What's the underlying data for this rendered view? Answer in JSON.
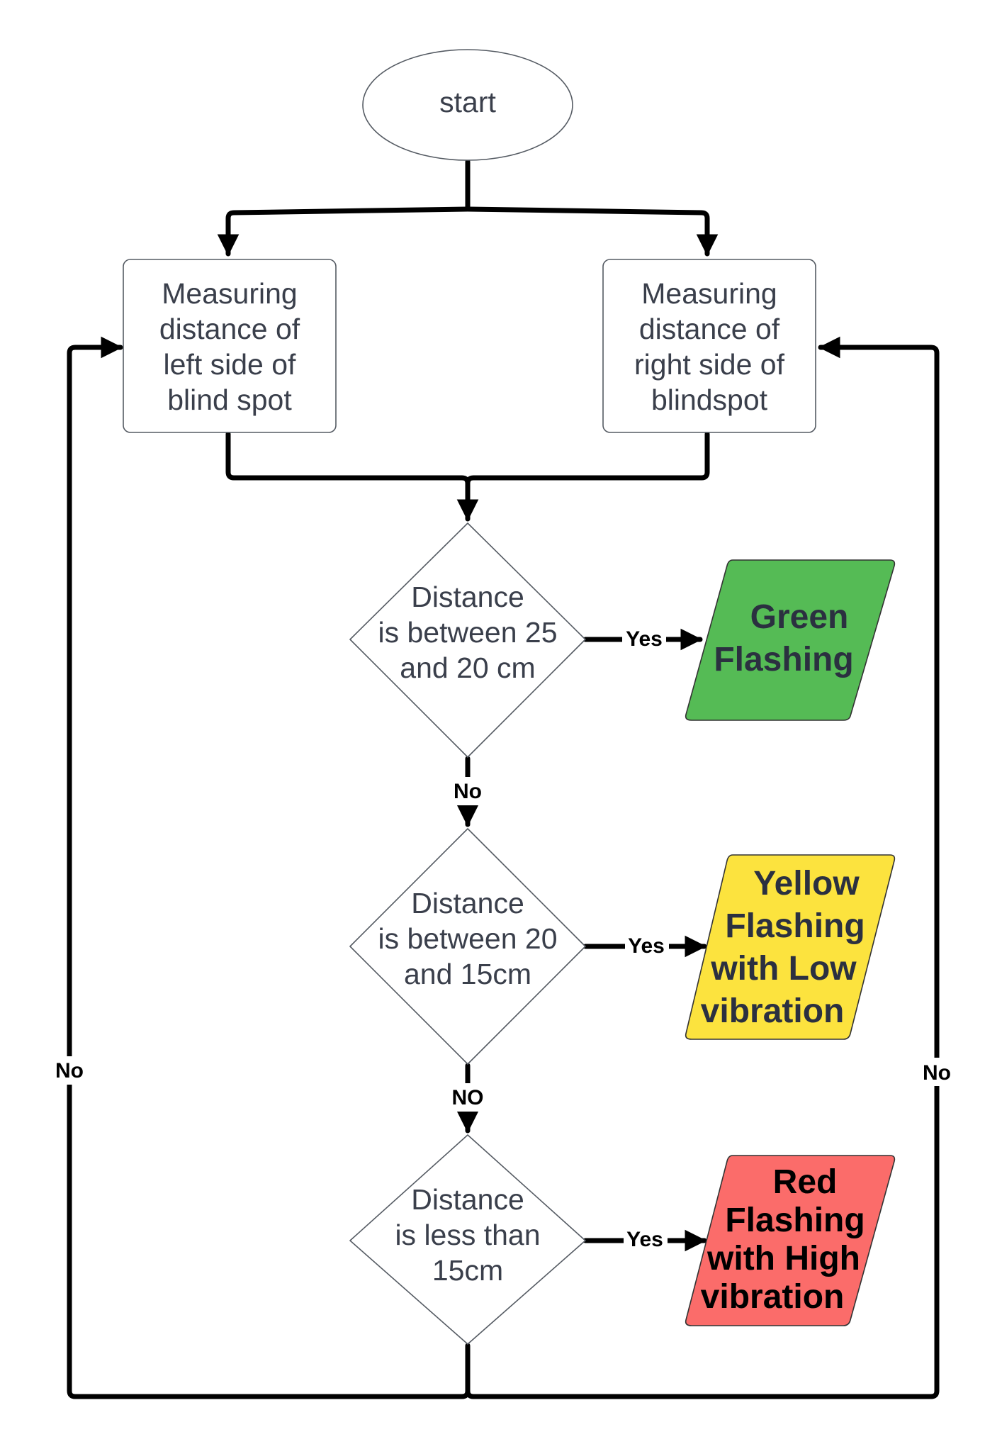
{
  "nodes": {
    "start": {
      "label": "start"
    },
    "measure_left": {
      "lines": [
        "Measuring",
        "distance of",
        "left side of",
        "blind spot"
      ]
    },
    "measure_right": {
      "lines": [
        "Measuring",
        "distance of",
        "right side of",
        "blindspot"
      ]
    },
    "decision_1": {
      "lines": [
        "Distance",
        "is between 25",
        "and 20 cm"
      ]
    },
    "decision_2": {
      "lines": [
        "Distance",
        "is between 20",
        "and 15cm"
      ]
    },
    "decision_3": {
      "lines": [
        "Distance",
        "is less than",
        "15cm"
      ]
    },
    "output_green": {
      "lines": [
        "Green",
        "Flashing"
      ],
      "fill": "#55bb55",
      "text_color": "#2b3040"
    },
    "output_yellow": {
      "lines": [
        "Yellow",
        "Flashing",
        "with Low",
        "vibration"
      ],
      "fill": "#fce33e",
      "text_color": "#2b3040"
    },
    "output_red": {
      "lines": [
        "Red",
        "Flashing",
        "with High",
        "vibration"
      ],
      "fill": "#fb6c6a",
      "text_color": "#000000"
    }
  },
  "edge_labels": {
    "yes_1": "Yes",
    "yes_2": "Yes",
    "yes_3": "Yes",
    "no_1": "No",
    "no_2": "NO",
    "no_left": "No",
    "no_right": "No"
  },
  "colors": {
    "line": "#000000",
    "node_text": "#3a3f4b",
    "node_border": "#555b63"
  }
}
